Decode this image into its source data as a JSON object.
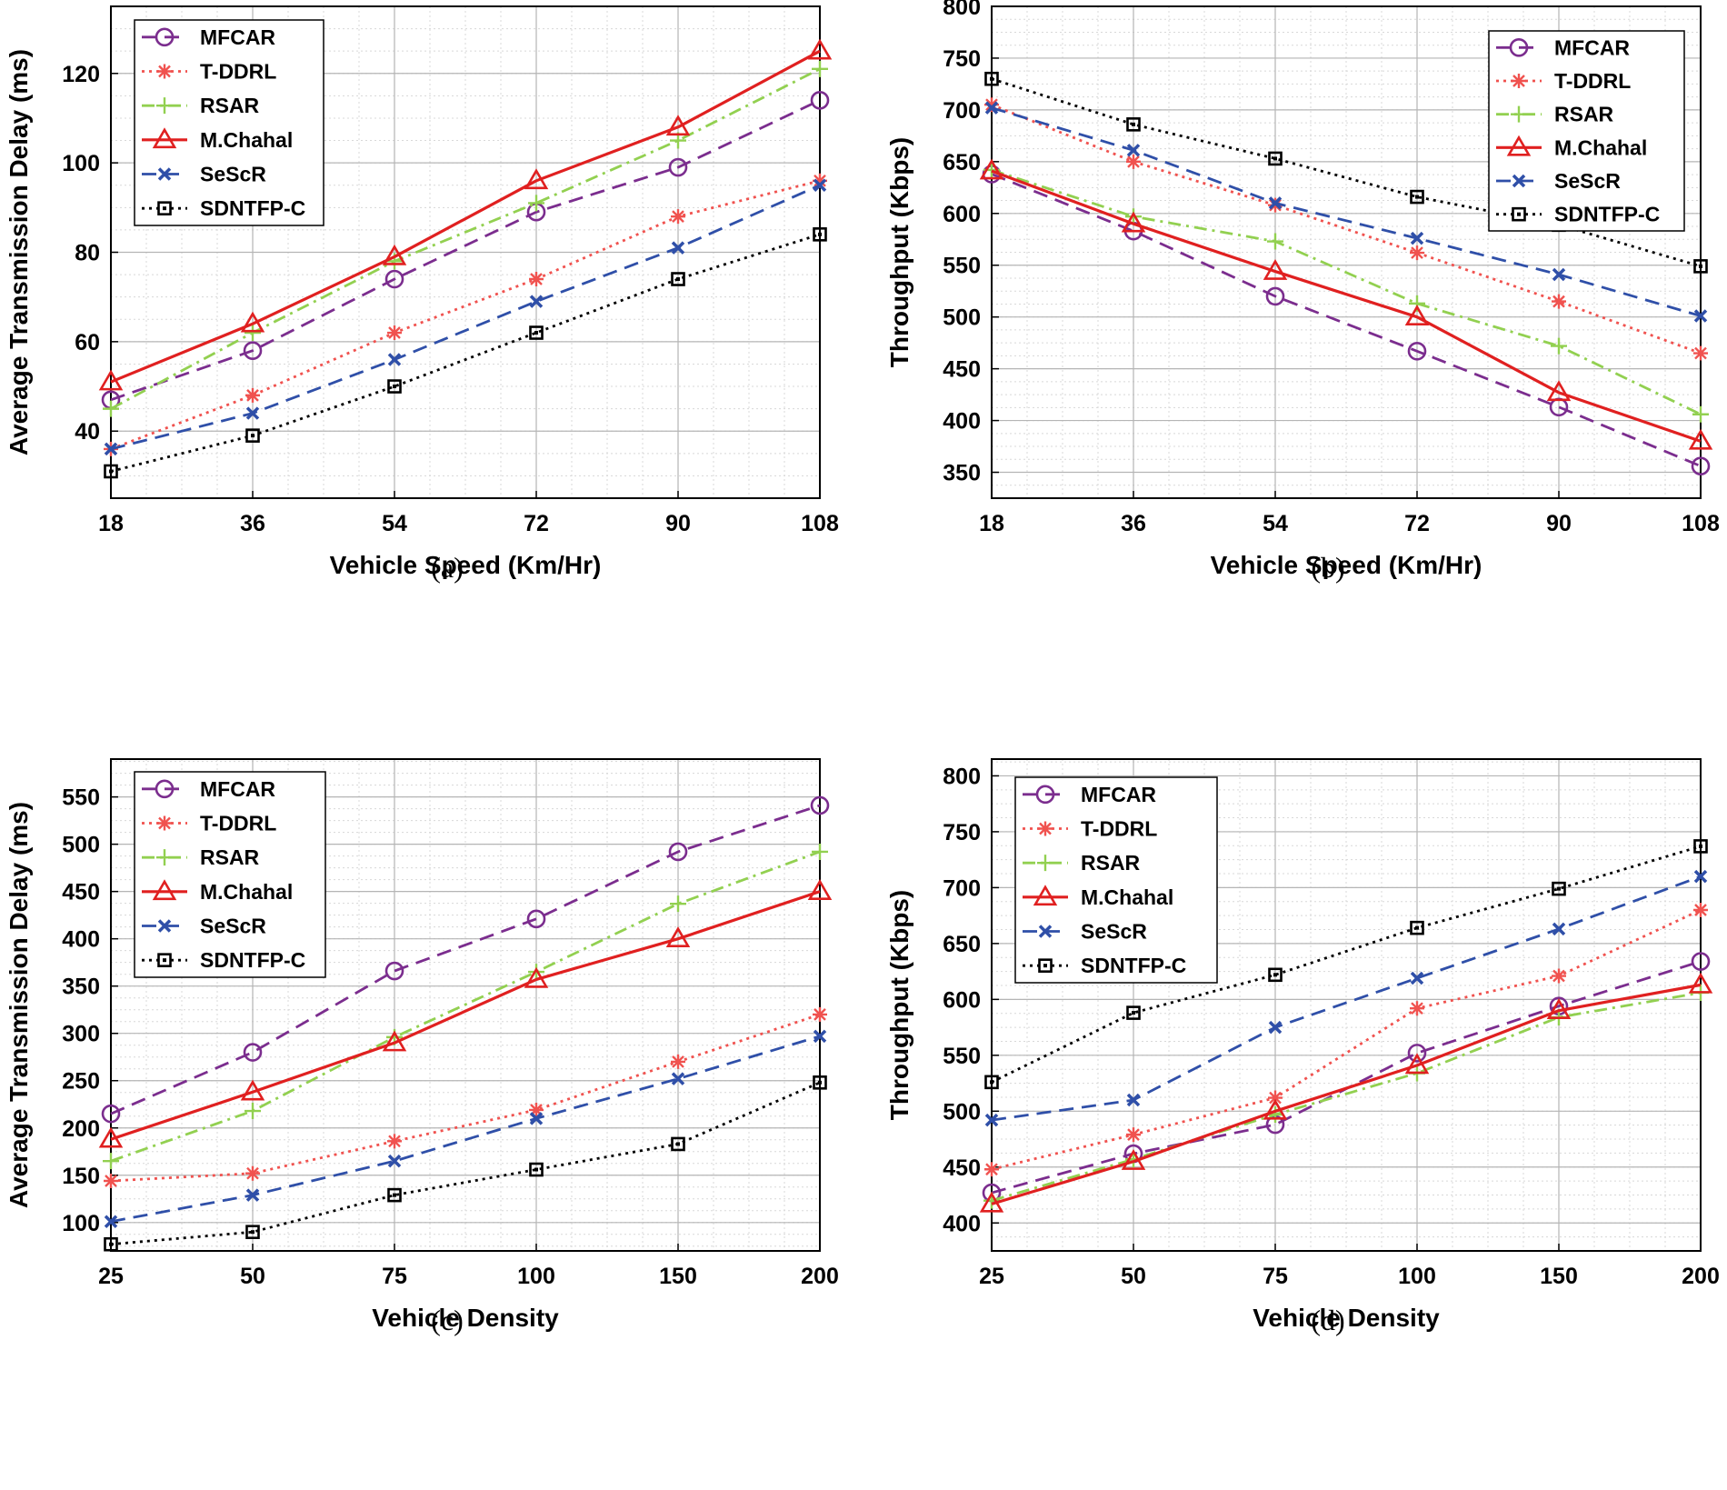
{
  "chart_data": [
    {
      "id": "a",
      "type": "line",
      "caption": "(a)",
      "xlabel": "Vehicle Speed (Km/Hr)",
      "ylabel": "Average Transmission Delay (ms)",
      "categories": [
        "18",
        "36",
        "54",
        "72",
        "90",
        "108"
      ],
      "ylim": [
        25,
        135
      ],
      "yticks": [
        40,
        60,
        80,
        100,
        120
      ],
      "grid": true,
      "legend": "top-left",
      "series": [
        {
          "name": "MFCAR",
          "values": [
            47,
            58,
            74,
            89,
            99,
            114
          ]
        },
        {
          "name": "T-DDRL",
          "values": [
            36,
            48,
            62,
            74,
            88,
            96
          ]
        },
        {
          "name": "RSAR",
          "values": [
            45,
            62,
            78,
            91,
            105,
            121
          ]
        },
        {
          "name": "M.Chahal",
          "values": [
            51,
            64,
            79,
            96,
            108,
            125
          ]
        },
        {
          "name": "SeScR",
          "values": [
            36,
            44,
            56,
            69,
            81,
            95
          ]
        },
        {
          "name": "SDNTFP-C",
          "values": [
            31,
            39,
            50,
            62,
            74,
            84
          ]
        }
      ]
    },
    {
      "id": "b",
      "type": "line",
      "caption": "(b)",
      "xlabel": "Vehicle Speed (Km/Hr)",
      "ylabel": "Throughput (Kbps)",
      "categories": [
        "18",
        "36",
        "54",
        "72",
        "90",
        "108"
      ],
      "ylim": [
        325,
        800
      ],
      "yticks": [
        350,
        400,
        450,
        500,
        550,
        600,
        650,
        700,
        750,
        800
      ],
      "grid": true,
      "legend": "top-right",
      "series": [
        {
          "name": "MFCAR",
          "values": [
            638,
            583,
            520,
            467,
            413,
            356
          ]
        },
        {
          "name": "T-DDRL",
          "values": [
            705,
            650,
            608,
            562,
            515,
            465
          ]
        },
        {
          "name": "RSAR",
          "values": [
            642,
            597,
            573,
            513,
            472,
            406
          ]
        },
        {
          "name": "M.Chahal",
          "values": [
            641,
            590,
            544,
            500,
            427,
            380
          ]
        },
        {
          "name": "SeScR",
          "values": [
            702,
            661,
            610,
            576,
            541,
            501
          ]
        },
        {
          "name": "SDNTFP-C",
          "values": [
            730,
            686,
            653,
            616,
            589,
            549
          ]
        }
      ]
    },
    {
      "id": "c",
      "type": "line",
      "caption": "(c)",
      "xlabel": "Vehicle Density",
      "ylabel": "Average Transmission Delay (ms)",
      "categories": [
        "25",
        "50",
        "75",
        "100",
        "150",
        "200"
      ],
      "ylim": [
        70,
        590
      ],
      "yticks": [
        100,
        150,
        200,
        250,
        300,
        350,
        400,
        450,
        500,
        550
      ],
      "grid": true,
      "legend": "top-left",
      "series": [
        {
          "name": "MFCAR",
          "values": [
            215,
            280,
            366,
            421,
            492,
            541
          ]
        },
        {
          "name": "T-DDRL",
          "values": [
            144,
            152,
            186,
            219,
            270,
            320
          ]
        },
        {
          "name": "RSAR",
          "values": [
            165,
            218,
            296,
            365,
            437,
            492
          ]
        },
        {
          "name": "M.Chahal",
          "values": [
            188,
            238,
            290,
            357,
            400,
            450
          ]
        },
        {
          "name": "SeScR",
          "values": [
            101,
            129,
            165,
            210,
            252,
            297
          ]
        },
        {
          "name": "SDNTFP-C",
          "values": [
            77,
            90,
            129,
            156,
            183,
            248
          ]
        }
      ]
    },
    {
      "id": "d",
      "type": "line",
      "caption": "(d)",
      "xlabel": "Vehicle Density",
      "ylabel": "Throughput (Kbps)",
      "categories": [
        "25",
        "50",
        "75",
        "100",
        "150",
        "200"
      ],
      "ylim": [
        375,
        815
      ],
      "yticks": [
        400,
        450,
        500,
        550,
        600,
        650,
        700,
        750,
        800
      ],
      "grid": true,
      "legend": "top-left",
      "series": [
        {
          "name": "MFCAR",
          "values": [
            427,
            462,
            488,
            552,
            594,
            634
          ]
        },
        {
          "name": "T-DDRL",
          "values": [
            448,
            479,
            512,
            592,
            621,
            680
          ]
        },
        {
          "name": "RSAR",
          "values": [
            420,
            457,
            497,
            534,
            584,
            606
          ]
        },
        {
          "name": "M.Chahal",
          "values": [
            417,
            455,
            500,
            541,
            590,
            613
          ]
        },
        {
          "name": "SeScR",
          "values": [
            492,
            510,
            575,
            619,
            663,
            710
          ]
        },
        {
          "name": "SDNTFP-C",
          "values": [
            526,
            588,
            622,
            664,
            699,
            737
          ]
        }
      ]
    }
  ],
  "styles": {
    "MFCAR": {
      "color": "#7b2d8e",
      "dash": "dashed",
      "marker": "circle-icon"
    },
    "T-DDRL": {
      "color": "#f0524f",
      "dash": "dotted",
      "marker": "asterisk-icon"
    },
    "RSAR": {
      "color": "#92d050",
      "dash": "dashdot",
      "marker": "plus-icon"
    },
    "M.Chahal": {
      "color": "#e02020",
      "dash": "solid",
      "marker": "triangle-icon"
    },
    "SeScR": {
      "color": "#2f4fa8",
      "dash": "dashed",
      "marker": "x-icon"
    },
    "SDNTFP-C": {
      "color": "#000000",
      "dash": "dotted",
      "marker": "square-icon"
    }
  }
}
